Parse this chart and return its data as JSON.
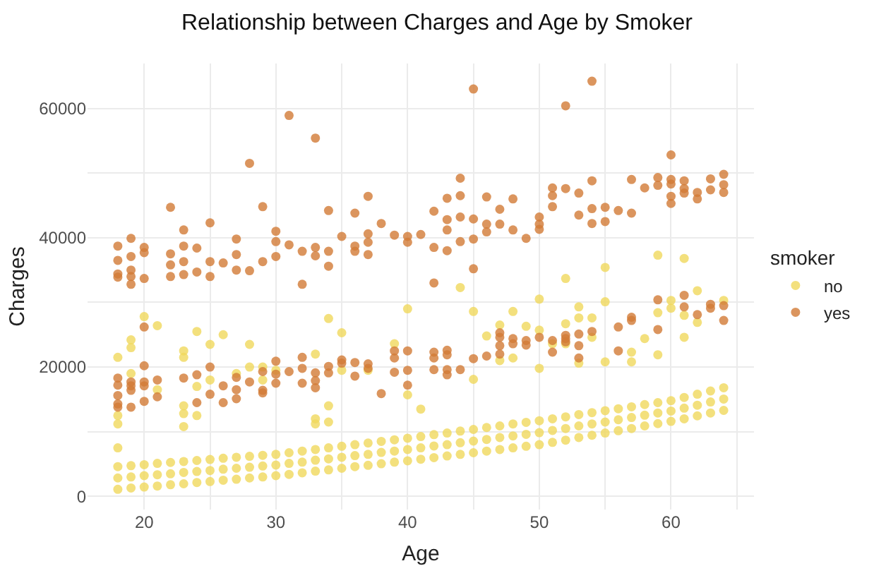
{
  "chart_data": {
    "type": "scatter",
    "title": "Relationship between Charges and Age by Smoker",
    "xlabel": "Age",
    "ylabel": "Charges",
    "legend_title": "smoker",
    "legend": "right",
    "grid": true,
    "marker": "circle",
    "xlim": [
      15.7,
      66.3
    ],
    "xticks": [
      20,
      {
        "value": 25,
        "label": null
      },
      30,
      {
        "value": 35,
        "label": null
      },
      40,
      {
        "value": 45,
        "label": null
      },
      50,
      {
        "value": 55,
        "label": null
      },
      60,
      {
        "value": 65,
        "label": null
      }
    ],
    "ylim": [
      -2035,
      66935
    ],
    "yticks": [
      0,
      {
        "value": 10000,
        "label": null
      },
      20000,
      {
        "value": 30000,
        "label": null
      },
      40000,
      {
        "value": 50000,
        "label": null
      },
      60000
    ],
    "series": [
      {
        "name": "no",
        "color": "#f0d85c",
        "x": [
          18,
          18,
          18,
          19,
          19,
          19,
          20,
          20,
          20,
          21,
          21,
          21,
          22,
          22,
          22,
          23,
          23,
          23,
          24,
          24,
          24,
          25,
          25,
          25,
          26,
          26,
          26,
          27,
          27,
          27,
          28,
          28,
          28,
          29,
          29,
          29,
          30,
          30,
          30,
          31,
          31,
          31,
          32,
          32,
          32,
          33,
          33,
          33,
          34,
          34,
          34,
          35,
          35,
          35,
          36,
          36,
          36,
          37,
          37,
          37,
          38,
          38,
          38,
          39,
          39,
          39,
          40,
          40,
          40,
          41,
          41,
          41,
          42,
          42,
          42,
          43,
          43,
          43,
          44,
          44,
          44,
          45,
          45,
          45,
          46,
          46,
          46,
          47,
          47,
          47,
          48,
          48,
          48,
          49,
          49,
          49,
          50,
          50,
          50,
          51,
          51,
          51,
          52,
          52,
          52,
          53,
          53,
          53,
          54,
          54,
          54,
          55,
          55,
          55,
          56,
          56,
          56,
          57,
          57,
          57,
          58,
          58,
          58,
          59,
          59,
          59,
          60,
          60,
          60,
          61,
          61,
          61,
          62,
          62,
          62,
          63,
          63,
          63,
          64,
          64,
          64,
          18,
          18,
          18,
          18,
          19,
          19,
          19,
          20,
          21,
          21,
          23,
          23,
          23,
          23,
          23,
          24,
          24,
          24,
          25,
          25,
          26,
          27,
          28,
          28,
          29,
          29,
          30,
          33,
          33,
          33,
          34,
          34,
          34,
          35,
          35,
          37,
          39,
          40,
          40,
          41,
          44,
          45,
          45,
          46,
          47,
          47,
          48,
          48,
          49,
          50,
          50,
          50,
          51,
          52,
          52,
          52,
          53,
          53,
          53,
          54,
          54,
          55,
          55,
          55,
          57,
          57,
          58,
          59,
          59,
          59,
          60,
          60,
          61,
          61,
          61,
          62,
          62,
          64
        ],
        "values": [
          1100,
          2850,
          4600,
          1300,
          3000,
          4750,
          1450,
          3200,
          4900,
          1600,
          3350,
          5100,
          1800,
          3500,
          5250,
          1950,
          3700,
          5400,
          2150,
          3850,
          5550,
          2300,
          4000,
          5700,
          2500,
          4200,
          5900,
          2650,
          4350,
          6050,
          2850,
          4500,
          6200,
          3000,
          4700,
          6350,
          3200,
          4850,
          6500,
          3400,
          5100,
          6750,
          3650,
          5300,
          7000,
          3900,
          5600,
          7250,
          4100,
          5800,
          7500,
          4350,
          6050,
          7750,
          4600,
          6300,
          8000,
          4800,
          6500,
          8250,
          5050,
          6800,
          8500,
          5300,
          7000,
          8750,
          5500,
          7250,
          9000,
          5750,
          7500,
          9250,
          6000,
          7800,
          9550,
          6250,
          8000,
          9800,
          6500,
          8300,
          10100,
          6750,
          8550,
          10350,
          7000,
          8800,
          10650,
          7250,
          9100,
          10900,
          7500,
          9350,
          11200,
          7750,
          9600,
          11450,
          8000,
          9850,
          11700,
          8350,
          10200,
          12000,
          8700,
          10500,
          12300,
          9100,
          10900,
          12650,
          9450,
          11200,
          12950,
          9800,
          11500,
          13250,
          10150,
          11850,
          13550,
          10500,
          12200,
          13850,
          10900,
          12550,
          14200,
          11250,
          12900,
          14500,
          11600,
          13200,
          14800,
          12000,
          13650,
          15300,
          12450,
          14100,
          15800,
          12900,
          14600,
          16300,
          13300,
          15050,
          16800,
          21500,
          12500,
          11200,
          7500,
          24200,
          23000,
          19000,
          27800,
          26400,
          16500,
          22500,
          21500,
          14000,
          12800,
          10800,
          25500,
          17000,
          12500,
          23500,
          18000,
          25000,
          19000,
          23500,
          20000,
          20000,
          18000,
          19500,
          22000,
          12000,
          11200,
          27500,
          14000,
          11500,
          25300,
          19500,
          19500,
          23600,
          29000,
          15700,
          13500,
          32300,
          28600,
          18100,
          24800,
          26500,
          21000,
          28600,
          21400,
          26300,
          30500,
          25700,
          19800,
          23600,
          33700,
          26700,
          23600,
          29300,
          27600,
          20600,
          27600,
          24600,
          35400,
          30100,
          20800,
          22300,
          20800,
          24400,
          37300,
          28400,
          21900,
          30300,
          29100,
          36800,
          28000,
          24600,
          31800,
          26900,
          30300
        ]
      },
      {
        "name": "yes",
        "color": "#d27a36",
        "x": [
          18,
          18,
          18,
          18,
          19,
          19,
          19,
          19,
          19,
          20,
          20,
          20,
          22,
          22,
          22,
          22,
          23,
          23,
          23,
          23,
          24,
          24,
          25,
          25,
          25,
          26,
          27,
          27,
          27,
          28,
          28,
          29,
          29,
          30,
          30,
          30,
          31,
          31,
          32,
          32,
          33,
          33,
          33,
          34,
          34,
          34,
          35,
          36,
          36,
          36,
          37,
          37,
          37,
          37,
          38,
          39,
          40,
          40,
          41,
          42,
          42,
          42,
          43,
          43,
          43,
          43,
          44,
          44,
          44,
          44,
          45,
          45,
          45,
          45,
          46,
          46,
          46,
          47,
          47,
          48,
          48,
          49,
          50,
          50,
          50,
          51,
          51,
          51,
          52,
          52,
          53,
          53,
          54,
          54,
          54,
          54,
          55,
          55,
          56,
          57,
          57,
          58,
          59,
          59,
          60,
          60,
          60,
          60,
          60,
          61,
          61,
          61,
          62,
          62,
          63,
          63,
          64,
          64,
          64,
          18,
          18,
          18,
          18,
          18,
          19,
          19,
          19,
          19,
          20,
          20,
          20,
          20,
          20,
          21,
          21,
          23,
          24,
          24,
          25,
          25,
          26,
          26,
          27,
          27,
          27,
          28,
          29,
          29,
          29,
          30,
          30,
          30,
          31,
          32,
          32,
          32,
          33,
          33,
          33,
          34,
          34,
          35,
          35,
          36,
          36,
          37,
          37,
          38,
          39,
          39,
          39,
          40,
          40,
          40,
          42,
          42,
          42,
          43,
          43,
          43,
          43,
          44,
          45,
          46,
          47,
          47,
          47,
          47,
          48,
          48,
          49,
          49,
          50,
          51,
          51,
          52,
          52,
          52,
          53,
          53,
          53,
          54,
          56,
          56,
          57,
          57,
          59,
          59,
          61,
          61,
          62,
          63,
          63,
          64,
          64
        ],
        "values": [
          38700,
          36500,
          34400,
          33900,
          39900,
          37100,
          35000,
          34000,
          32800,
          38500,
          37700,
          33700,
          44700,
          37500,
          35800,
          34000,
          41200,
          38700,
          36300,
          34300,
          38400,
          34700,
          42300,
          36300,
          34000,
          36100,
          39800,
          37400,
          35000,
          51500,
          34900,
          44800,
          36300,
          41000,
          39400,
          37100,
          58900,
          38900,
          37900,
          32800,
          55400,
          38500,
          37200,
          44200,
          37900,
          35600,
          40200,
          43800,
          38700,
          37900,
          46400,
          40600,
          39300,
          37400,
          42200,
          40400,
          40200,
          39300,
          40500,
          38500,
          44100,
          33000,
          46100,
          42800,
          41200,
          38000,
          49200,
          46500,
          43200,
          39400,
          63000,
          42900,
          39800,
          35200,
          46300,
          42100,
          40900,
          44400,
          42100,
          46000,
          41200,
          39900,
          43200,
          42100,
          41300,
          47700,
          46500,
          44800,
          60400,
          47600,
          46900,
          43500,
          64200,
          48800,
          44500,
          42200,
          44700,
          42500,
          44200,
          49000,
          43800,
          47700,
          49300,
          48100,
          52800,
          49000,
          48300,
          46400,
          45300,
          48800,
          47600,
          46900,
          47000,
          46000,
          49100,
          47400,
          49800,
          48200,
          47000,
          18300,
          17200,
          15600,
          14300,
          13800,
          17700,
          17100,
          16400,
          13800,
          26200,
          20200,
          17700,
          17100,
          14700,
          18000,
          15400,
          18300,
          18800,
          14500,
          20000,
          15800,
          17100,
          14500,
          18400,
          16500,
          15100,
          17700,
          19300,
          16400,
          16000,
          20900,
          18900,
          17500,
          19300,
          21500,
          19800,
          17500,
          19100,
          17900,
          16800,
          20100,
          19100,
          21100,
          20600,
          20700,
          18600,
          20500,
          19800,
          15900,
          22500,
          21400,
          19200,
          22500,
          19500,
          17200,
          22300,
          21400,
          19600,
          22600,
          21900,
          19600,
          18800,
          19600,
          21300,
          21700,
          25300,
          24600,
          23300,
          22000,
          24400,
          23600,
          24100,
          23400,
          24600,
          24100,
          22300,
          24900,
          24400,
          23900,
          25100,
          23300,
          21400,
          25500,
          26200,
          22500,
          27700,
          27200,
          30400,
          25800,
          31100,
          29300,
          28100,
          29700,
          29100,
          29500,
          27200
        ]
      }
    ]
  }
}
